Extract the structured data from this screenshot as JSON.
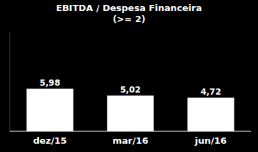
{
  "chart_data": {
    "type": "bar",
    "title": "EBITDA / Despesa Financeira",
    "subtitle": "(>= 2)",
    "categories": [
      "dez/15",
      "mar/16",
      "jun/16"
    ],
    "values": [
      5.98,
      5.02,
      4.72
    ],
    "value_labels": [
      "5,98",
      "5,02",
      "4,72"
    ],
    "data_labels": true,
    "color": "#ffffff",
    "ylim": [
      0,
      14.0
    ],
    "grid": false,
    "tick_labels": "x"
  }
}
